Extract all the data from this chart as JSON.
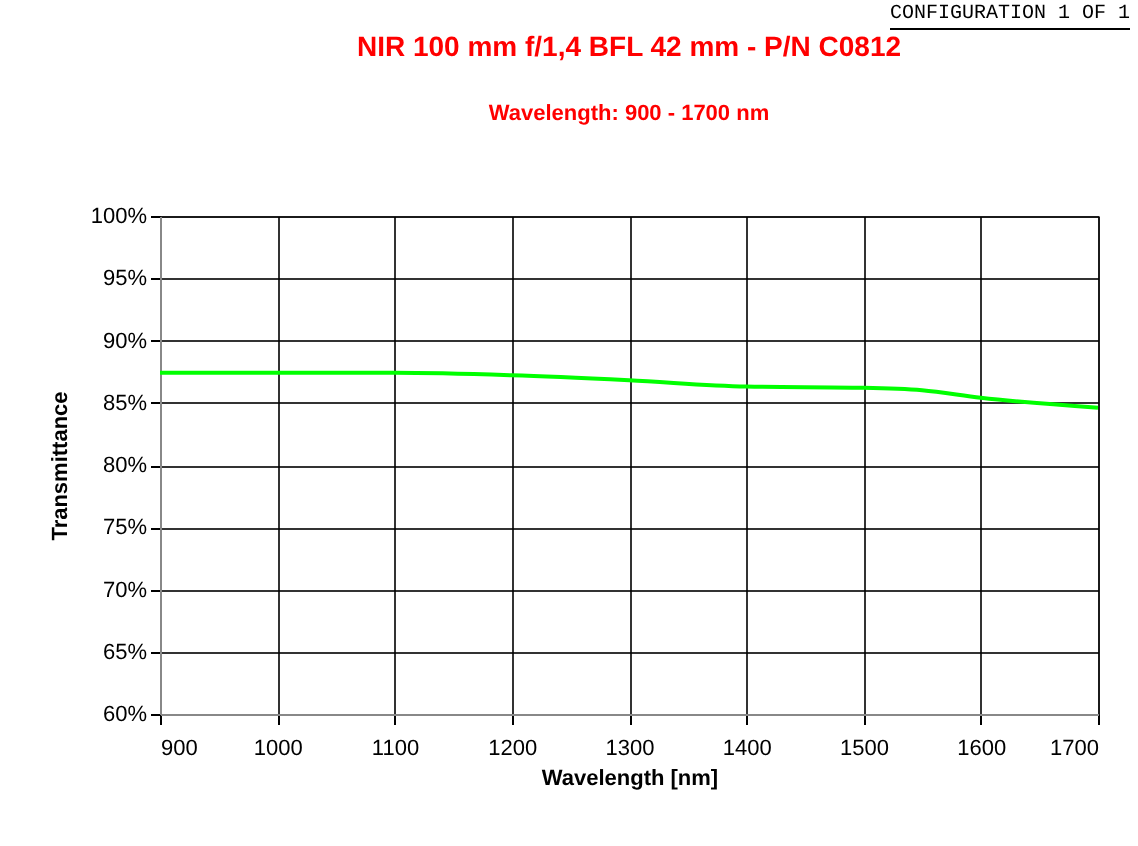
{
  "chart_data": {
    "type": "line",
    "title": "NIR 100 mm f/1,4 BFL 42  mm - P/N C0812",
    "subtitle": "Wavelength: 900 - 1700 nm",
    "xlabel": "Wavelength [nm]",
    "ylabel": "Transmittance",
    "annotations": [
      "CONFIGURATION 1 OF 1"
    ],
    "x": [
      900,
      1000,
      1100,
      1200,
      1300,
      1400,
      1500,
      1550,
      1600,
      1700
    ],
    "series": [
      {
        "color": "#00ff00",
        "values": [
          87.4,
          87.4,
          87.4,
          87.2,
          86.8,
          86.3,
          86.2,
          86.0,
          85.4,
          84.6
        ]
      }
    ],
    "xlim": [
      900,
      1700
    ],
    "xticks": [
      900,
      1000,
      1100,
      1200,
      1300,
      1400,
      1500,
      1600,
      1700
    ],
    "ylim": [
      60,
      100
    ],
    "yticks": [
      {
        "value": 60,
        "label": "60%"
      },
      {
        "value": 65,
        "label": "65%"
      },
      {
        "value": 70,
        "label": "70%"
      },
      {
        "value": 75,
        "label": "75%"
      },
      {
        "value": 80,
        "label": "80%"
      },
      {
        "value": 85,
        "label": "85%"
      },
      {
        "value": 90,
        "label": "90%"
      },
      {
        "value": 95,
        "label": "95%"
      },
      {
        "value": 100,
        "label": "100%"
      }
    ],
    "grid": true,
    "legend": false,
    "marker": "none",
    "line_style": "solid"
  }
}
